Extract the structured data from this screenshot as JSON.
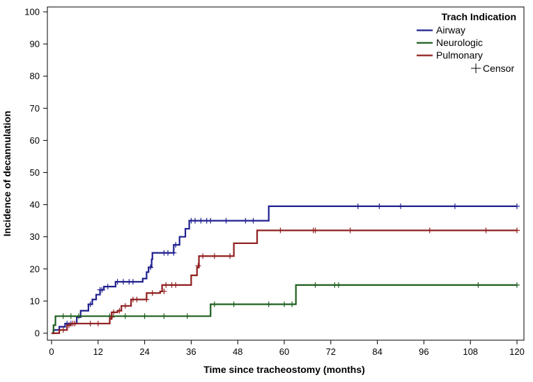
{
  "chart_data": {
    "type": "line",
    "step": true,
    "xlabel": "Time since tracheostomy (months)",
    "ylabel": "Incidence of decannulation",
    "xlim": [
      0,
      120
    ],
    "ylim": [
      0,
      100
    ],
    "xticks": [
      0,
      12,
      24,
      36,
      48,
      60,
      72,
      84,
      96,
      108,
      120
    ],
    "yticks": [
      0,
      10,
      20,
      30,
      40,
      50,
      60,
      70,
      80,
      90,
      100
    ],
    "legend": {
      "title": "Trach Indication",
      "placement": "top-right",
      "censor_label": "Censor"
    },
    "series": [
      {
        "name": "Airway",
        "color": "#1f1f8f",
        "steps": [
          [
            0,
            0
          ],
          [
            0.5,
            1
          ],
          [
            2,
            2
          ],
          [
            3.5,
            3
          ],
          [
            6.5,
            5
          ],
          [
            7.5,
            7
          ],
          [
            9.5,
            9
          ],
          [
            10.5,
            10.5
          ],
          [
            11.5,
            12
          ],
          [
            12.5,
            13.5
          ],
          [
            13.5,
            14.5
          ],
          [
            16.5,
            16
          ],
          [
            23.5,
            17
          ],
          [
            24.5,
            19
          ],
          [
            25,
            20.5
          ],
          [
            25.8,
            23
          ],
          [
            26,
            25
          ],
          [
            31.5,
            27.5
          ],
          [
            33,
            30
          ],
          [
            34.5,
            32.5
          ],
          [
            35.5,
            35
          ],
          [
            56,
            39.5
          ]
        ],
        "end_x": 120,
        "censors": [
          [
            4,
            3
          ],
          [
            5,
            3
          ],
          [
            10,
            9
          ],
          [
            12.5,
            13.5
          ],
          [
            13,
            13.5
          ],
          [
            14.5,
            14.5
          ],
          [
            17,
            16
          ],
          [
            18.5,
            16
          ],
          [
            20,
            16
          ],
          [
            21,
            16
          ],
          [
            25.5,
            20.5
          ],
          [
            29,
            25
          ],
          [
            30,
            25
          ],
          [
            31.5,
            25
          ],
          [
            32,
            27.5
          ],
          [
            36,
            35
          ],
          [
            37,
            35
          ],
          [
            38.5,
            35
          ],
          [
            40,
            35
          ],
          [
            41,
            35
          ],
          [
            45,
            35
          ],
          [
            50,
            35
          ],
          [
            52,
            35
          ],
          [
            79,
            39.5
          ],
          [
            84.5,
            39.5
          ],
          [
            90,
            39.5
          ],
          [
            104,
            39.5
          ],
          [
            120,
            39.5
          ]
        ]
      },
      {
        "name": "Neurologic",
        "color": "#1d5e1d",
        "steps": [
          [
            0,
            0
          ],
          [
            0.5,
            2.5
          ],
          [
            1,
            5.3
          ],
          [
            41,
            9
          ],
          [
            63,
            15
          ]
        ],
        "end_x": 120,
        "censors": [
          [
            3,
            5.3
          ],
          [
            5,
            5.3
          ],
          [
            7,
            5.3
          ],
          [
            15,
            5.3
          ],
          [
            19,
            5.3
          ],
          [
            24,
            5.3
          ],
          [
            29,
            5.3
          ],
          [
            35,
            5.3
          ],
          [
            42,
            9
          ],
          [
            47,
            9
          ],
          [
            56,
            9
          ],
          [
            60,
            9
          ],
          [
            62,
            9
          ],
          [
            68,
            15
          ],
          [
            73,
            15
          ],
          [
            74,
            15
          ],
          [
            110,
            15
          ],
          [
            120,
            15
          ]
        ]
      },
      {
        "name": "Pulmonary",
        "color": "#8f1d1d",
        "steps": [
          [
            0,
            0
          ],
          [
            2,
            1
          ],
          [
            4,
            2.5
          ],
          [
            5,
            3
          ],
          [
            15,
            4.5
          ],
          [
            15.5,
            6.5
          ],
          [
            17,
            7
          ],
          [
            18,
            8.5
          ],
          [
            20.5,
            10.5
          ],
          [
            24.5,
            12.5
          ],
          [
            28,
            13
          ],
          [
            28.5,
            15
          ],
          [
            36,
            18
          ],
          [
            37.5,
            20.5
          ],
          [
            38,
            24
          ],
          [
            47,
            28
          ],
          [
            53,
            32
          ]
        ],
        "end_x": 120,
        "censors": [
          [
            3,
            1
          ],
          [
            4.5,
            2.5
          ],
          [
            5.5,
            3
          ],
          [
            6,
            3
          ],
          [
            10,
            3
          ],
          [
            12,
            3
          ],
          [
            15.5,
            5
          ],
          [
            16,
            6.5
          ],
          [
            17.5,
            7
          ],
          [
            19,
            8.5
          ],
          [
            21,
            10.5
          ],
          [
            22,
            10.5
          ],
          [
            24.5,
            10.5
          ],
          [
            26,
            12.5
          ],
          [
            29,
            13
          ],
          [
            29.5,
            15
          ],
          [
            31,
            15
          ],
          [
            32,
            15
          ],
          [
            37.8,
            21
          ],
          [
            39,
            24
          ],
          [
            42,
            24
          ],
          [
            46,
            24
          ],
          [
            59,
            32
          ],
          [
            67.5,
            32
          ],
          [
            68,
            32
          ],
          [
            77,
            32
          ],
          [
            97.5,
            32
          ],
          [
            112,
            32
          ],
          [
            120,
            32
          ]
        ]
      }
    ]
  }
}
